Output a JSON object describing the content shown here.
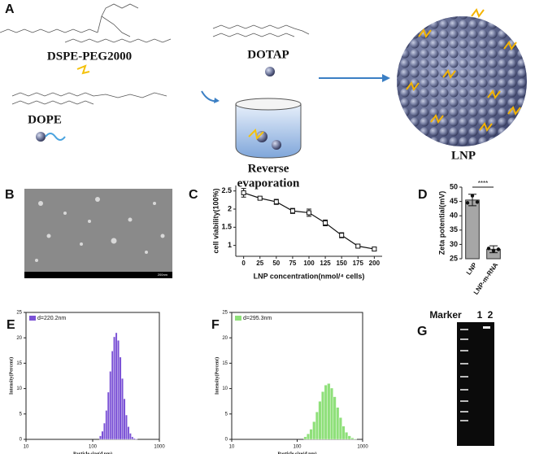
{
  "schematic": {
    "panel": "A",
    "labels": [
      "DSPE-PEG2000",
      "DOTAP",
      "DOPE",
      "Reverse",
      "evaporation",
      "LNP"
    ]
  },
  "tem_image": {
    "panel": "B",
    "scale_label": "200nm"
  },
  "gel": {
    "panel": "G",
    "lane_labels": [
      "Marker",
      "1",
      "2"
    ]
  },
  "chart_data": [
    {
      "panel": "C",
      "type": "line",
      "xlabel": "LNP concentration(nmol/⁴ cells)",
      "ylabel": "cell viability(100%)",
      "x": [
        0,
        25,
        50,
        75,
        100,
        125,
        150,
        175,
        200
      ],
      "series": [
        {
          "name": "cell viability",
          "color": "#111111",
          "values": [
            2.45,
            2.3,
            2.2,
            1.95,
            1.9,
            1.62,
            1.28,
            0.98,
            0.9
          ],
          "errors": [
            0.12,
            0.04,
            0.07,
            0.07,
            0.1,
            0.08,
            0.07,
            0.04,
            0.05
          ]
        }
      ],
      "xlim": [
        -12,
        212
      ],
      "xticks": [
        0,
        25,
        50,
        75,
        100,
        125,
        150,
        175,
        200
      ],
      "ylim": [
        0.7,
        2.65
      ],
      "yticks": [
        1,
        1.5,
        2,
        2.5
      ]
    },
    {
      "panel": "D",
      "type": "bar",
      "ylabel": "Zeta potential(mV)",
      "categories": [
        "LNP",
        "LNP-m-RNA"
      ],
      "values": [
        45.5,
        28.3
      ],
      "errors": [
        2,
        1.2
      ],
      "points": [
        [
          44.5,
          47,
          44.8
        ],
        [
          28.6,
          27.8,
          28.3
        ]
      ],
      "color": "#a6a6a6",
      "annotation": "****",
      "ylim": [
        25,
        50
      ],
      "yticks": [
        25,
        30,
        35,
        40,
        45,
        50
      ]
    },
    {
      "panel": "E",
      "type": "histogram",
      "xlabel": "Particle size(d.nm)",
      "ylabel": "Intensity(Percent)",
      "log_x": true,
      "bins": [
        126,
        135,
        145,
        155,
        166,
        178,
        191,
        204,
        219,
        234,
        251,
        269,
        288,
        309,
        331,
        355,
        380,
        407,
        437,
        468,
        501
      ],
      "series": [
        {
          "name": "d=220.2nm",
          "color": "#7b52d6",
          "values": [
            0.7,
            1.6,
            3.2,
            5.7,
            9.3,
            13.4,
            17.4,
            20.2,
            21.0,
            19.5,
            16.2,
            12.0,
            8.0,
            4.8,
            2.5,
            1.2,
            0.5,
            0.2,
            0.1,
            0.0
          ]
        }
      ],
      "xlim": [
        10,
        1000
      ],
      "xticks": [
        10,
        100,
        1000
      ],
      "ylim": [
        0,
        25
      ],
      "yticks": [
        0,
        5,
        10,
        15,
        20,
        25
      ]
    },
    {
      "panel": "F",
      "type": "histogram",
      "xlabel": "Particle size(d.nm)",
      "ylabel": "Intensity(Percent)",
      "log_x": true,
      "bins": [
        126,
        140,
        155,
        172,
        191,
        211,
        234,
        260,
        288,
        320,
        355,
        394,
        437,
        484,
        537,
        596,
        661,
        733,
        813
      ],
      "series": [
        {
          "name": "d=295.3nm",
          "color": "#8fe07a",
          "values": [
            0.5,
            1.1,
            2.0,
            3.5,
            5.4,
            7.5,
            9.4,
            10.7,
            11.0,
            10.1,
            8.4,
            6.3,
            4.3,
            2.6,
            1.4,
            0.7,
            0.3,
            0.1
          ]
        }
      ],
      "xlim": [
        10,
        1000
      ],
      "xticks": [
        10,
        100,
        1000
      ],
      "ylim": [
        0,
        25
      ],
      "yticks": [
        0,
        5,
        10,
        15,
        20,
        25
      ]
    }
  ]
}
